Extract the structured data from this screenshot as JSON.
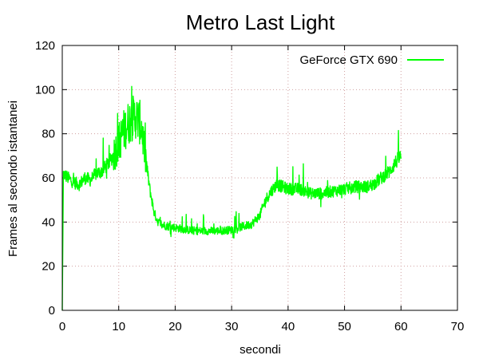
{
  "chart_data": {
    "type": "line",
    "title": "Metro Last Light",
    "xlabel": "secondi",
    "ylabel": "Frames al secondo istantanei",
    "xlim": [
      0,
      70
    ],
    "ylim": [
      0,
      120
    ],
    "xticks": [
      0,
      10,
      20,
      30,
      40,
      50,
      60,
      70
    ],
    "yticks": [
      0,
      20,
      40,
      60,
      80,
      100,
      120
    ],
    "grid": true,
    "legend_position": "top-right",
    "series": [
      {
        "name": "GeForce GTX 690",
        "color": "#00ff00",
        "noisy": true,
        "points": [
          [
            0,
            0
          ],
          [
            0.2,
            62
          ],
          [
            1,
            60
          ],
          [
            2,
            58
          ],
          [
            3,
            57
          ],
          [
            4,
            60
          ],
          [
            5,
            59
          ],
          [
            6,
            62
          ],
          [
            7,
            63
          ],
          [
            8,
            66
          ],
          [
            9,
            70
          ],
          [
            10,
            76
          ],
          [
            11,
            82
          ],
          [
            12,
            86
          ],
          [
            13,
            88
          ],
          [
            14,
            84
          ],
          [
            14.7,
            70
          ],
          [
            15.5,
            55
          ],
          [
            16.3,
            44
          ],
          [
            17,
            40
          ],
          [
            18,
            38.5
          ],
          [
            20,
            37.5
          ],
          [
            22,
            36.5
          ],
          [
            24,
            36
          ],
          [
            26,
            36
          ],
          [
            28,
            36
          ],
          [
            30,
            36.5
          ],
          [
            32,
            38
          ],
          [
            33.5,
            39
          ],
          [
            35,
            43
          ],
          [
            36,
            50
          ],
          [
            37,
            54
          ],
          [
            38,
            57
          ],
          [
            40,
            55
          ],
          [
            42,
            55
          ],
          [
            44,
            53
          ],
          [
            46,
            53
          ],
          [
            48,
            54
          ],
          [
            50,
            55
          ],
          [
            52,
            56
          ],
          [
            54,
            56
          ],
          [
            55,
            57
          ],
          [
            56,
            59
          ],
          [
            57,
            61
          ],
          [
            58,
            63
          ],
          [
            59,
            67
          ],
          [
            60,
            70
          ]
        ]
      }
    ]
  }
}
